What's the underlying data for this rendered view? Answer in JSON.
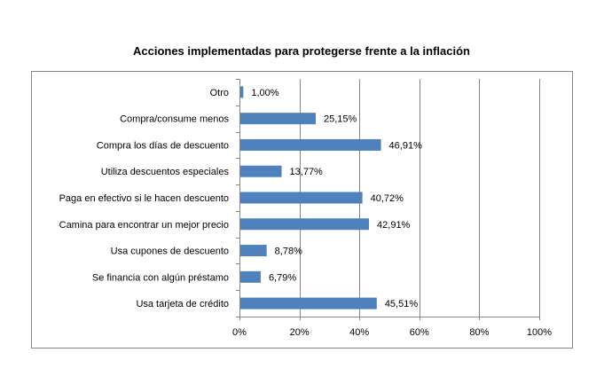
{
  "chart_data": {
    "type": "bar",
    "orientation": "horizontal",
    "title": "Acciones implementadas para protegerse frente a la inflación",
    "categories": [
      "Otro",
      "Compra/consume menos",
      "Compra los días de descuento",
      "Utiliza descuentos especiales",
      "Paga en efectivo si le hacen descuento",
      "Camina para encontrar un mejor precio",
      "Usa cupones de descuento",
      "Se financia con algún préstamo",
      "Usa tarjeta de crédito"
    ],
    "values": [
      1.0,
      25.15,
      46.91,
      13.77,
      40.72,
      42.91,
      8.78,
      6.79,
      45.51
    ],
    "data_labels": [
      "1,00%",
      "25,15%",
      "46,91%",
      "13,77%",
      "40,72%",
      "42,91%",
      "8,78%",
      "6,79%",
      "45,51%"
    ],
    "xlim": [
      0,
      100
    ],
    "x_ticks": [
      0,
      20,
      40,
      60,
      80,
      100
    ],
    "x_tick_labels": [
      "0%",
      "20%",
      "40%",
      "60%",
      "80%",
      "100%"
    ],
    "xlabel": "",
    "ylabel": "",
    "grid": "vertical major gridlines",
    "legend": "none",
    "bar_color": "#4F81BD"
  }
}
